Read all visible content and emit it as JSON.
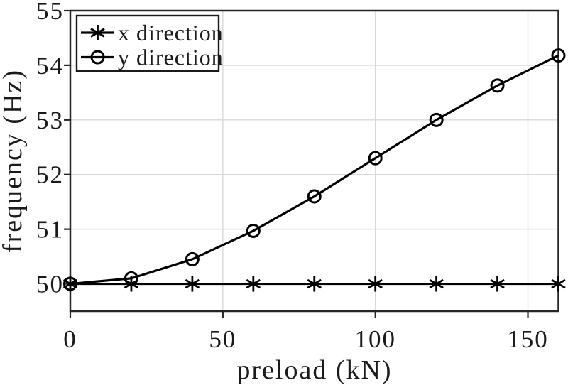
{
  "figure": {
    "background": "#ffffff"
  },
  "chart_data": {
    "type": "line",
    "title": "",
    "xlabel": "preload (kN)",
    "ylabel": "frequency (Hz)",
    "xlim": [
      0,
      160
    ],
    "ylim": [
      49.5,
      55
    ],
    "xticks": [
      0,
      50,
      100,
      150
    ],
    "yticks": [
      50,
      51,
      52,
      53,
      54,
      55
    ],
    "grid": true,
    "legend_position": "top-left",
    "x": [
      0,
      20,
      40,
      60,
      80,
      100,
      120,
      140,
      160
    ],
    "series": [
      {
        "name": "x direction",
        "marker": "asterisk",
        "color": "#000000",
        "values": [
          50.0,
          50.0,
          50.0,
          50.0,
          50.0,
          50.0,
          50.0,
          50.0,
          50.0
        ]
      },
      {
        "name": "y direction",
        "marker": "circle",
        "color": "#000000",
        "values": [
          50.0,
          50.1,
          50.45,
          50.97,
          51.6,
          52.3,
          53.0,
          53.63,
          54.18
        ]
      }
    ],
    "colors": {
      "line": "#000000",
      "grid": "#d8d8d8",
      "spine": "#262626",
      "text": "#1a1a1a",
      "legend_bg": "#ffffff"
    }
  }
}
